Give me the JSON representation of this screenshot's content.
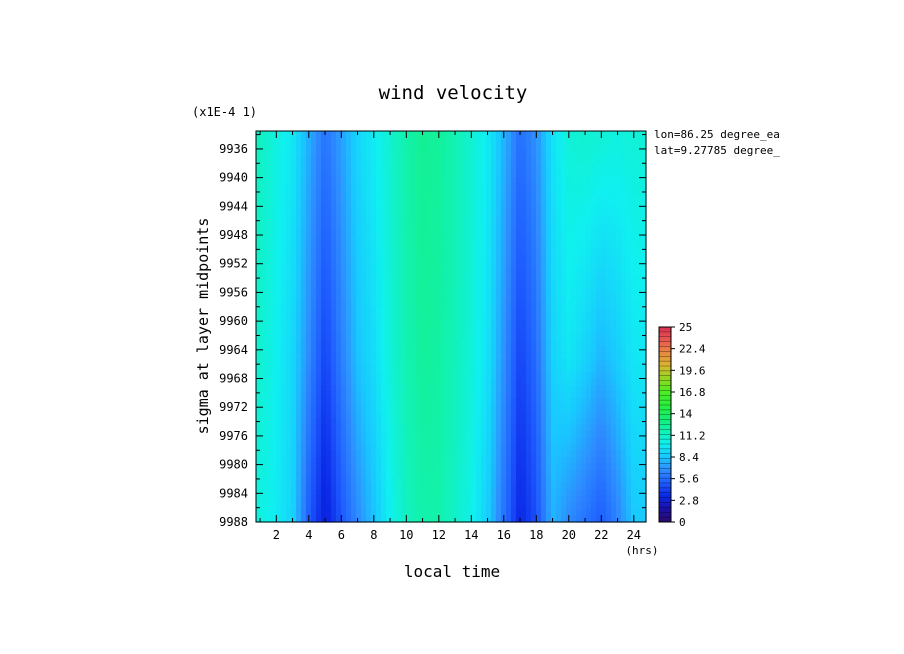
{
  "chart_data": {
    "type": "heatmap",
    "title": "wind velocity",
    "multiplier_label": "(x1E-4 1)",
    "xlabel": "local time",
    "xunit": "(hrs)",
    "ylabel": "sigma at layer midpoints",
    "info_lines": [
      "lon=86.25 degree_ea",
      "lat=9.27785 degree_"
    ],
    "xlim": [
      0.75,
      24.75
    ],
    "ylim": [
      9933.5,
      9988
    ],
    "x_ticks": [
      2,
      4,
      6,
      8,
      10,
      12,
      14,
      16,
      18,
      20,
      22,
      24
    ],
    "y_ticks": [
      9936,
      9940,
      9944,
      9948,
      9952,
      9956,
      9960,
      9964,
      9968,
      9972,
      9976,
      9980,
      9984,
      9988
    ],
    "colorbar": {
      "min": 0,
      "max": 25,
      "tick_labels": [
        "25",
        "22.4",
        "19.6",
        "16.8",
        "14",
        "11.2",
        "8.4",
        "5.6",
        "2.8",
        "0"
      ],
      "colors": [
        "#2a0a6e",
        "#1a10a8",
        "#0a28e6",
        "#1e5cff",
        "#2e8cff",
        "#19c8ff",
        "#10f0f0",
        "#12f2b0",
        "#14ee70",
        "#2af03a",
        "#4aee22",
        "#90d820",
        "#d8b830",
        "#e88a40",
        "#e85850",
        "#d83050"
      ]
    },
    "x": [
      1,
      2,
      3,
      4,
      5,
      6,
      7,
      8,
      9,
      10,
      11,
      12,
      13,
      14,
      15,
      16,
      17,
      18,
      19,
      20,
      21,
      22,
      23,
      24
    ],
    "y_levels": [
      9935,
      9965,
      9988
    ],
    "z": [
      [
        11.2,
        10.4,
        9.6,
        7.6,
        5.8,
        7.2,
        8.9,
        9.8,
        10.8,
        11.8,
        12.4,
        12.2,
        11.6,
        10.8,
        9.8,
        7.8,
        5.6,
        6.8,
        9.4,
        10.6,
        10.8,
        10.6,
        10.4,
        10.6
      ],
      [
        10.8,
        10.0,
        9.0,
        6.6,
        4.2,
        6.2,
        8.2,
        9.2,
        10.6,
        11.6,
        12.2,
        12.0,
        11.4,
        10.6,
        9.4,
        6.8,
        4.2,
        5.6,
        8.8,
        9.6,
        8.8,
        7.8,
        8.6,
        9.6
      ],
      [
        10.4,
        9.8,
        8.8,
        5.0,
        2.8,
        4.8,
        6.6,
        8.2,
        10.0,
        11.2,
        11.8,
        11.8,
        11.0,
        10.2,
        8.6,
        5.8,
        3.2,
        4.6,
        7.8,
        6.6,
        5.8,
        5.0,
        6.4,
        8.4
      ]
    ]
  }
}
